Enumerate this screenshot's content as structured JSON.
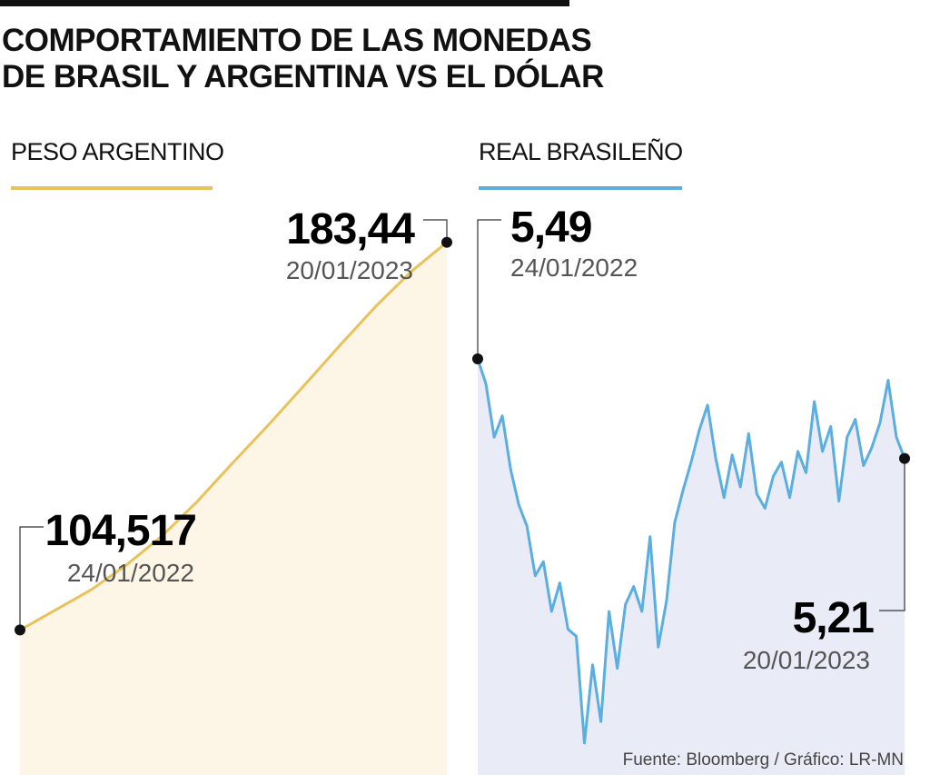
{
  "title": "COMPORTAMIENTO DE LAS MONEDAS DE BRASIL Y ARGENTINA VS EL DÓLAR",
  "source": "Fuente: Bloomberg / Gráfico: LR-MN",
  "colors": {
    "ars_line": "#e8c25b",
    "ars_fill": "#fdf5e6",
    "brl_line": "#5aaee0",
    "brl_fill": "#e9ecf7"
  },
  "chart_data": [
    {
      "type": "area",
      "series": [
        {
          "name": "PESO ARGENTINO",
          "x": [
            0,
            1,
            2,
            3,
            4,
            5,
            6,
            7,
            8,
            9,
            10,
            11,
            12
          ],
          "x_labels": [
            "24/01/2022",
            "",
            "",
            "",
            "",
            "",
            "",
            "",
            "",
            "",
            "",
            "",
            "20/01/2023"
          ],
          "values": [
            104.517,
            108.6,
            112.7,
            117.8,
            123.7,
            130.8,
            138.7,
            146.4,
            154.4,
            162.5,
            170.4,
            177.5,
            183.44
          ]
        }
      ],
      "annotations": [
        {
          "value": "104,517",
          "date": "24/01/2022"
        },
        {
          "value": "183,44",
          "date": "20/01/2023"
        }
      ],
      "ylim": [
        75,
        193
      ]
    },
    {
      "type": "area",
      "series": [
        {
          "name": "REAL BRASILEÑO",
          "x": [
            0,
            1,
            2,
            3,
            4,
            5,
            6,
            7,
            8,
            9,
            10,
            11,
            12,
            13,
            14,
            15,
            16,
            17,
            18,
            19,
            20,
            21,
            22,
            23,
            24,
            25,
            26,
            27,
            28,
            29,
            30,
            31,
            32,
            33,
            34,
            35,
            36,
            37,
            38,
            39,
            40,
            41,
            42,
            43,
            44,
            45,
            46,
            47,
            48,
            49,
            50,
            51,
            52
          ],
          "values": [
            5.49,
            5.42,
            5.27,
            5.33,
            5.18,
            5.08,
            5.02,
            4.88,
            4.92,
            4.78,
            4.86,
            4.73,
            4.71,
            4.41,
            4.63,
            4.47,
            4.78,
            4.62,
            4.8,
            4.85,
            4.78,
            4.99,
            4.68,
            4.81,
            5.03,
            5.12,
            5.2,
            5.29,
            5.36,
            5.21,
            5.1,
            5.22,
            5.13,
            5.28,
            5.11,
            5.07,
            5.16,
            5.2,
            5.1,
            5.23,
            5.17,
            5.37,
            5.23,
            5.3,
            5.09,
            5.27,
            5.32,
            5.19,
            5.24,
            5.31,
            5.43,
            5.27,
            5.21
          ],
          "x_labels": [
            "24/01/2022",
            "20/01/2023"
          ]
        }
      ],
      "annotations": [
        {
          "value": "5,49",
          "date": "24/01/2022"
        },
        {
          "value": "5,21",
          "date": "20/01/2023"
        }
      ],
      "ylim": [
        4.32,
        5.95
      ]
    }
  ],
  "annotations": {
    "ars_start": {
      "value": "104,517",
      "date": "24/01/2022"
    },
    "ars_end": {
      "value": "183,44",
      "date": "20/01/2023"
    },
    "brl_start": {
      "value": "5,49",
      "date": "24/01/2022"
    },
    "brl_end": {
      "value": "5,21",
      "date": "20/01/2023"
    }
  }
}
